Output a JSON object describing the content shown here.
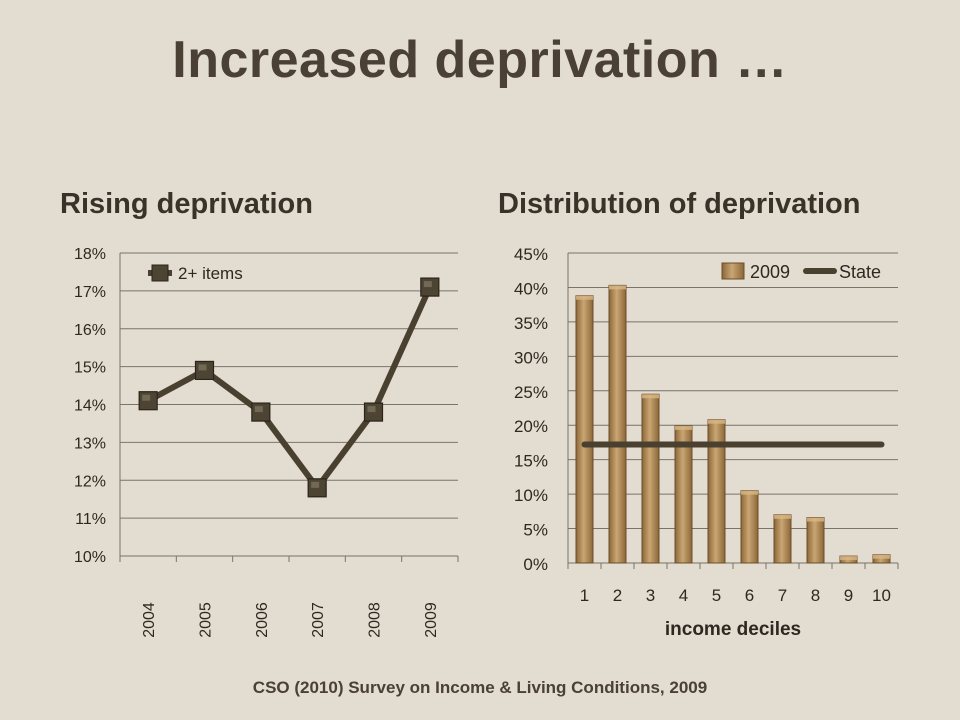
{
  "slide": {
    "title": "Increased deprivation …",
    "source": "CSO (2010) Survey on Income & Living Conditions, 2009"
  },
  "chart_data": [
    {
      "type": "line",
      "title": "Rising deprivation",
      "x": [
        "2004",
        "2005",
        "2006",
        "2007",
        "2008",
        "2009"
      ],
      "series": [
        {
          "name": "2+ items",
          "values": [
            14.1,
            14.9,
            13.8,
            11.8,
            13.8,
            17.1
          ]
        }
      ],
      "ylim": [
        10,
        18
      ],
      "yticks": [
        "10%",
        "11%",
        "12%",
        "13%",
        "14%",
        "15%",
        "16%",
        "17%",
        "18%"
      ],
      "ytick_values": [
        10,
        11,
        12,
        13,
        14,
        15,
        16,
        17,
        18
      ],
      "grid": true,
      "legend": "top-left",
      "colors": {
        "line": "#4a4030",
        "marker": "#4d4434",
        "grid": "#7a7468"
      }
    },
    {
      "type": "bar",
      "title": "Distribution of deprivation",
      "categories": [
        "1",
        "2",
        "3",
        "4",
        "5",
        "6",
        "7",
        "8",
        "9",
        "10"
      ],
      "series": [
        {
          "name": "2009",
          "kind": "bar",
          "values": [
            38.8,
            40.3,
            24.5,
            19.9,
            20.8,
            10.5,
            7.0,
            6.6,
            1.0,
            1.2
          ]
        },
        {
          "name": "State",
          "kind": "line",
          "values": [
            17.2,
            17.2,
            17.2,
            17.2,
            17.2,
            17.2,
            17.2,
            17.2,
            17.2,
            17.2
          ]
        }
      ],
      "xlabel": "income deciles",
      "ylim": [
        0,
        45
      ],
      "yticks": [
        "0%",
        "5%",
        "10%",
        "15%",
        "20%",
        "25%",
        "30%",
        "35%",
        "40%",
        "45%"
      ],
      "ytick_values": [
        0,
        5,
        10,
        15,
        20,
        25,
        30,
        35,
        40,
        45
      ],
      "grid": true,
      "legend": "top-right",
      "colors": {
        "bar": "#a57c4a",
        "bar_light": "#c9a674",
        "line": "#4a4030",
        "grid": "#7a7468"
      }
    }
  ]
}
